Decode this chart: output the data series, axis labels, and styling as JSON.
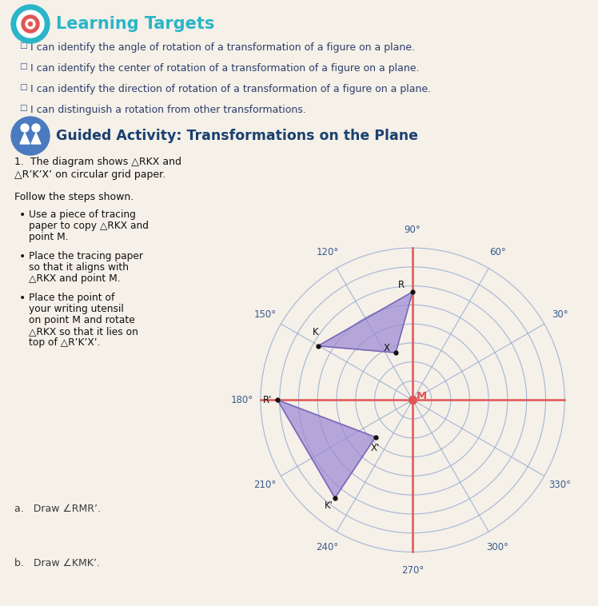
{
  "bg_color": "#f5f0e8",
  "teal_color": "#2ab5c8",
  "blue_text": "#3a5a8c",
  "dark_blue": "#2c3e6b",
  "red_color": "#e05555",
  "guide_blue": "#4a7abf",
  "heading_dark": "#1a4070",
  "learning_targets_title": "Learning Targets",
  "bullet_items": [
    "I can identify the angle of rotation of a transformation of a figure on a plane.",
    "I can identify the center of rotation of a transformation of a figure on a plane.",
    "I can identify the direction of rotation of a transformation of a figure on a plane.",
    "I can distinguish a rotation from other transformations."
  ],
  "guided_title": "Guided Activity: Transformations on the Plane",
  "problem_line1": "1.  The diagram shows △RKX and",
  "problem_line2": "△R’K’X’ on circular grid paper.",
  "follow_text": "Follow the steps shown.",
  "step1": [
    "Use a piece of tracing",
    "paper to copy △RKX and",
    "point M."
  ],
  "step2": [
    "Place the tracing paper",
    "so that it aligns with",
    "△RKX and point M."
  ],
  "step3": [
    "Place the point of",
    "your writing utensil",
    "on point M and rotate",
    "△RKX so that it lies on",
    "top of △R’K’X’."
  ],
  "sub_a": "a.   Draw ∠RMR’.",
  "sub_b": "b.   Draw ∠KMK’.",
  "polar_grid_color": "#8fa8d0",
  "polar_axis_color": "#e05555",
  "triangle_fill": "#9b87d4",
  "triangle_alpha": 0.7,
  "triangle_edge": "#7a6ab8",
  "R": [
    0.0,
    3.2
  ],
  "K": [
    -2.8,
    1.6
  ],
  "X": [
    -0.5,
    1.4
  ],
  "Rp": [
    -4.0,
    0.0
  ],
  "Kp": [
    -2.3,
    -2.9
  ],
  "Xp": [
    -1.1,
    -1.1
  ],
  "angle_labels": [
    "90°",
    "60°",
    "30°",
    "330°",
    "300°",
    "270°",
    "240°",
    "210°",
    "180°",
    "150°",
    "120°"
  ],
  "angle_values": [
    90,
    60,
    30,
    330,
    300,
    270,
    240,
    210,
    180,
    150,
    120
  ],
  "n_circles": 8,
  "max_r": 4.5
}
